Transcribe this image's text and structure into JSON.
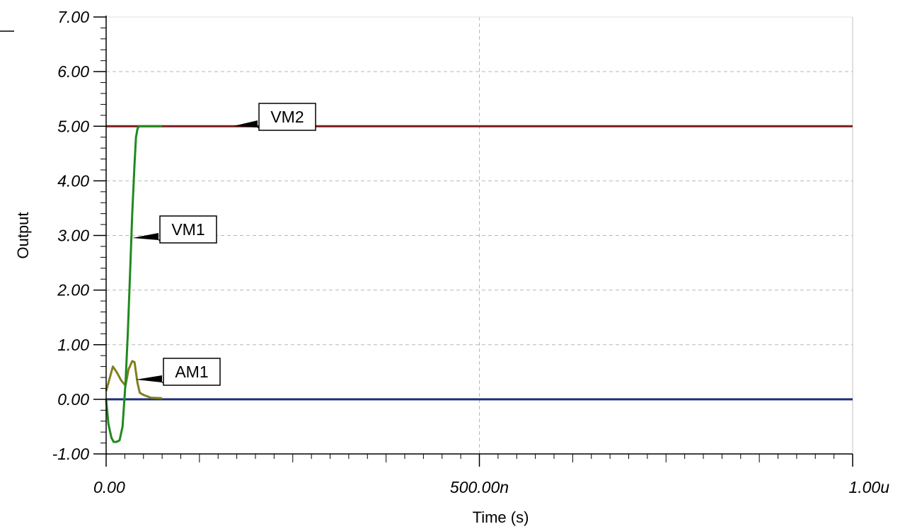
{
  "chart_data": {
    "type": "line",
    "xlabel": "Time (s)",
    "ylabel": "Output",
    "xlim": [
      0,
      1e-06
    ],
    "ylim": [
      -1,
      7
    ],
    "x_ticks": [
      {
        "value": 0,
        "label": "0.00"
      },
      {
        "value": 5e-07,
        "label": "500.00n"
      },
      {
        "value": 1e-06,
        "label": "1.00u"
      }
    ],
    "y_ticks": [
      {
        "value": 7,
        "label": "7.00"
      },
      {
        "value": 6,
        "label": "6.00"
      },
      {
        "value": 5,
        "label": "5.00"
      },
      {
        "value": 4,
        "label": "4.00"
      },
      {
        "value": 3,
        "label": "3.00"
      },
      {
        "value": 2,
        "label": "2.00"
      },
      {
        "value": 1,
        "label": "1.00"
      },
      {
        "value": 0,
        "label": "0.00"
      },
      {
        "value": -1,
        "label": "-1.00"
      }
    ],
    "grid": true,
    "series": [
      {
        "name": "VM2",
        "color": "#7a1c1c",
        "x": [
          0,
          1e-06
        ],
        "y": [
          5.0,
          5.0
        ]
      },
      {
        "name": "",
        "color": "#1f2f7a",
        "x": [
          0,
          1e-06
        ],
        "y": [
          0.0,
          0.0
        ]
      },
      {
        "name": "AM1",
        "color": "#7f7f1f",
        "x": [
          0,
          4e-09,
          9e-09,
          1.4e-08,
          2e-08,
          2.6e-08,
          3e-08,
          3.5e-08,
          3.8e-08,
          4.2e-08,
          4.5e-08,
          5e-08,
          6e-08,
          7.5e-08
        ],
        "y": [
          0.15,
          0.35,
          0.6,
          0.5,
          0.35,
          0.25,
          0.55,
          0.7,
          0.68,
          0.3,
          0.12,
          0.08,
          0.03,
          0.02
        ]
      },
      {
        "name": "VM1",
        "color": "#1e8a1e",
        "x": [
          0,
          3e-09,
          7e-09,
          1e-08,
          1.4e-08,
          1.8e-08,
          2.2e-08,
          2.6e-08,
          2.9e-08,
          3.2e-08,
          3.5e-08,
          3.8e-08,
          4e-08,
          4.2e-08,
          4.4e-08,
          4.8e-08,
          5.5e-08,
          7.5e-08
        ],
        "y": [
          0.0,
          -0.45,
          -0.7,
          -0.78,
          -0.78,
          -0.75,
          -0.5,
          0.3,
          1.2,
          2.3,
          3.4,
          4.3,
          4.8,
          4.95,
          5.0,
          5.0,
          5.0,
          5.0
        ]
      }
    ],
    "annotations": [
      {
        "text": "VM2",
        "series": "VM2"
      },
      {
        "text": "VM1",
        "series": "VM1"
      },
      {
        "text": "AM1",
        "series": "AM1"
      }
    ]
  }
}
